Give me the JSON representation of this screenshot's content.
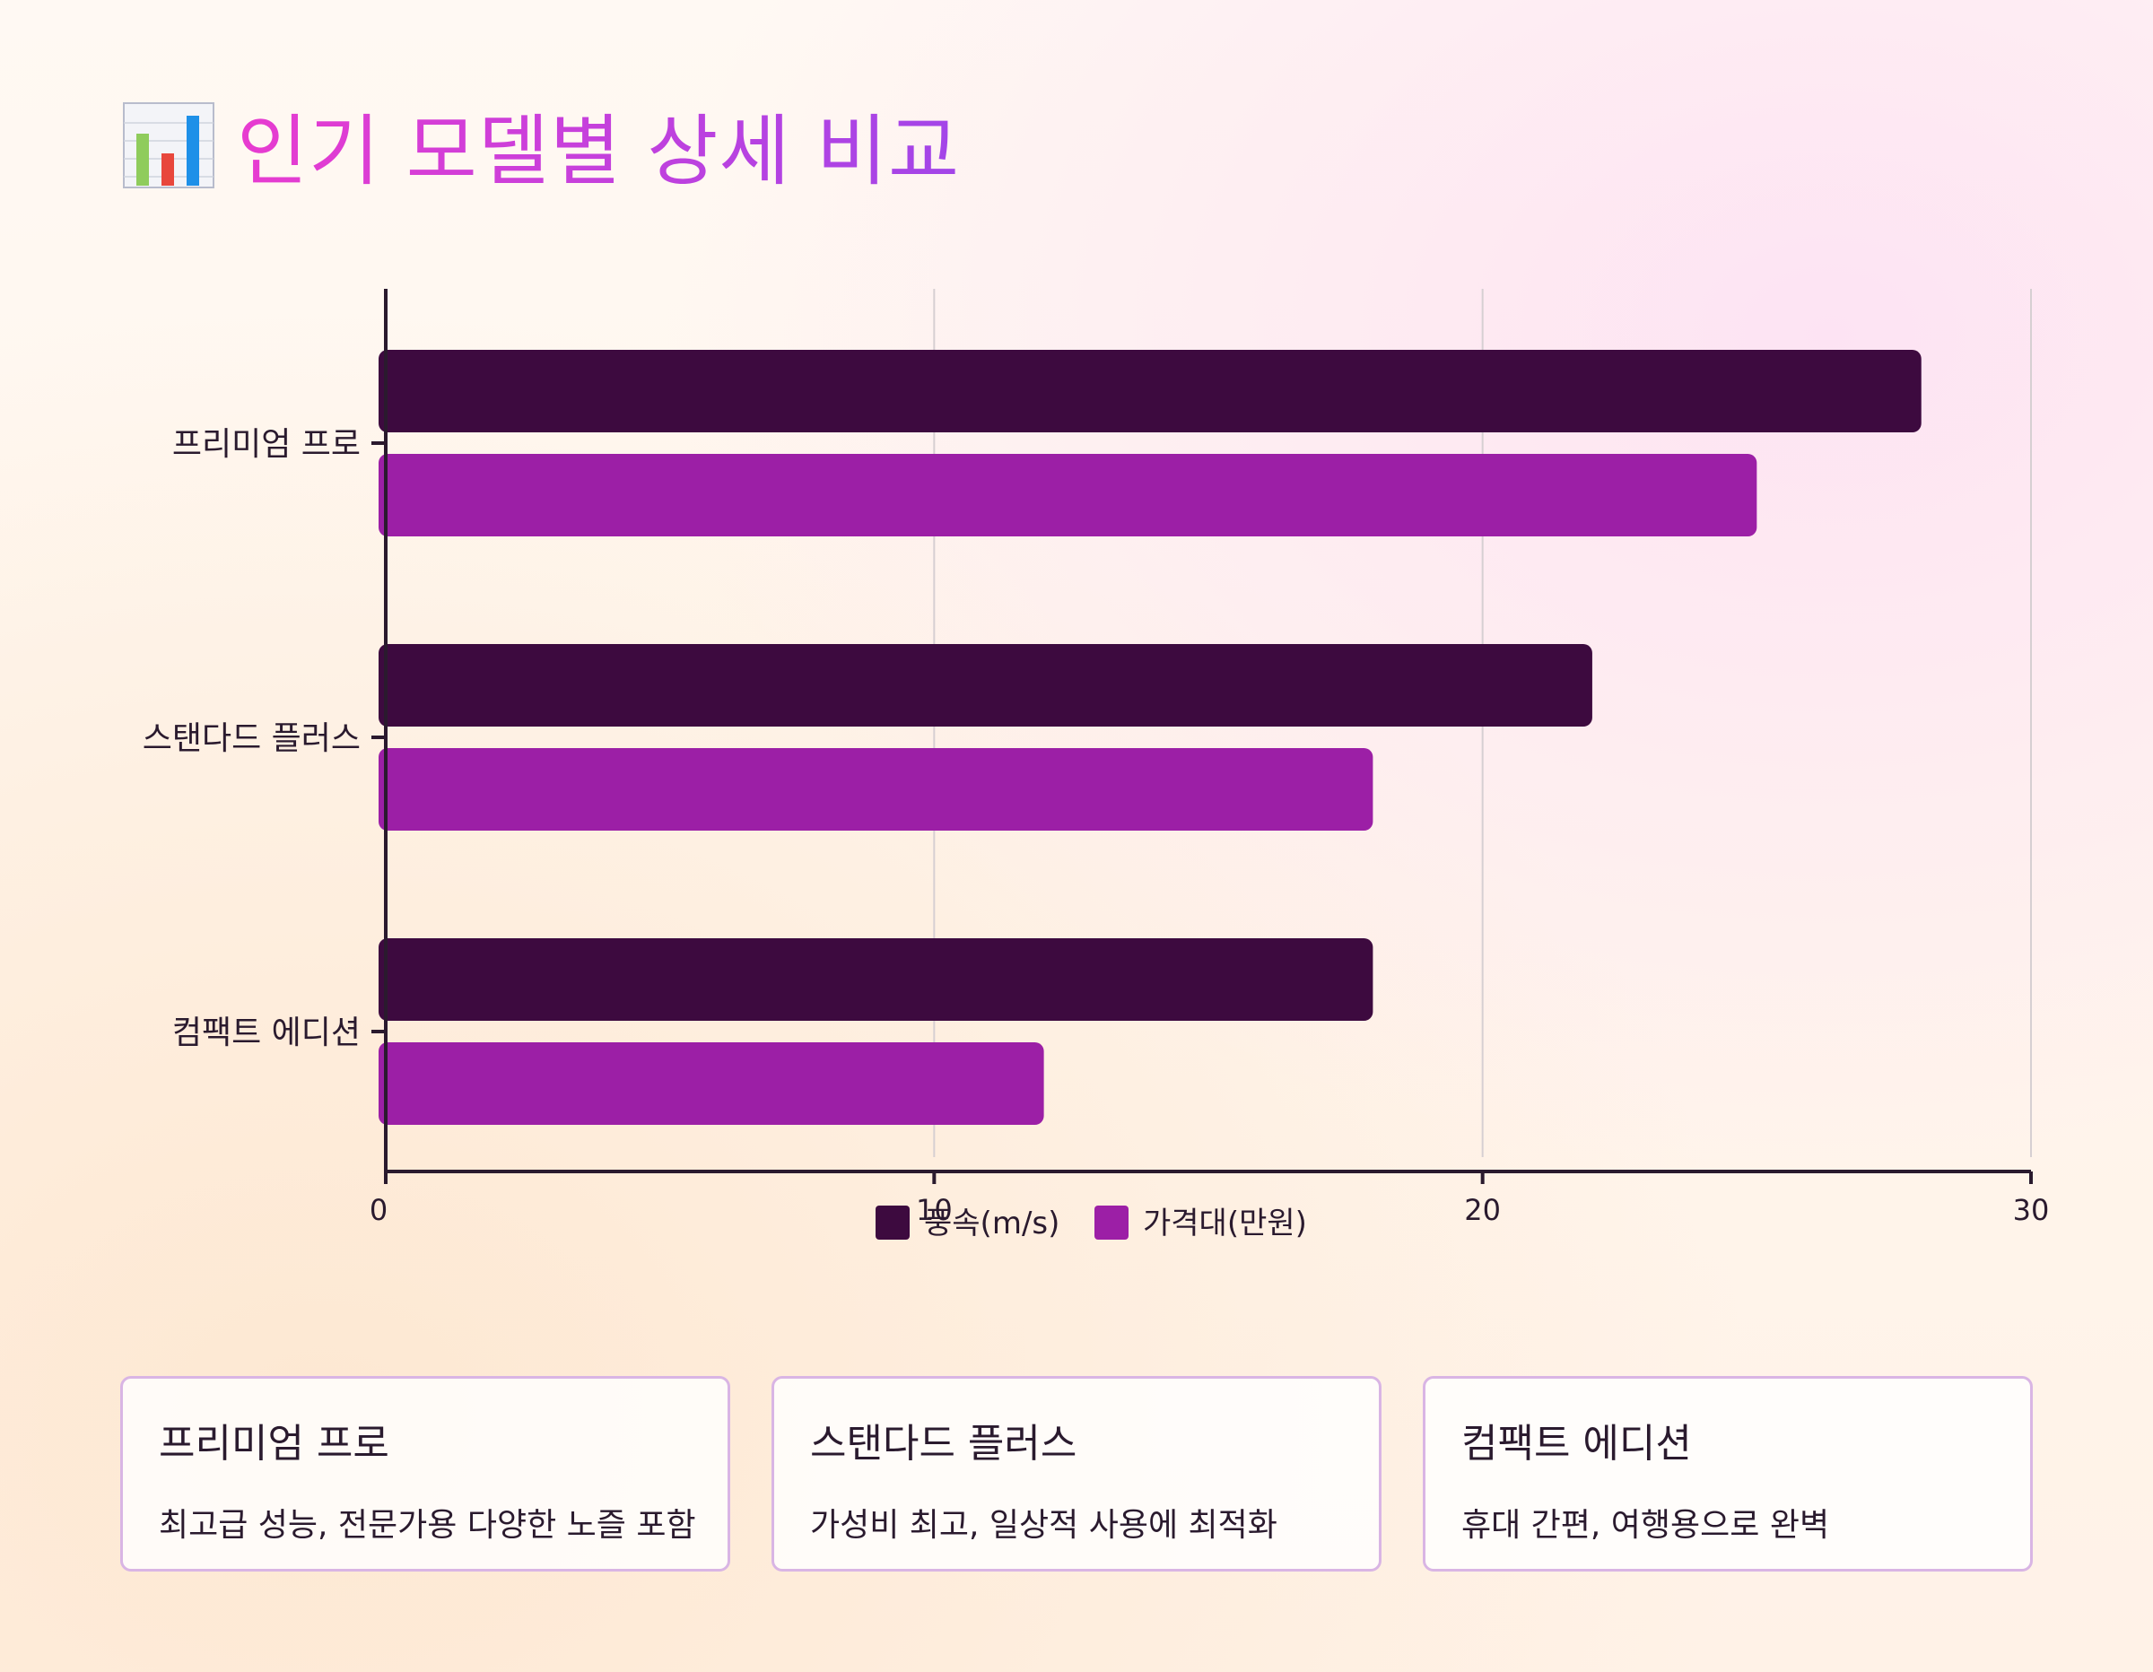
{
  "header": {
    "icon": "bar-chart-icon",
    "title": "인기 모델별 상세 비교"
  },
  "chart_data": {
    "type": "bar",
    "orientation": "horizontal",
    "categories": [
      "프리미엄 프로",
      "스탠다드 플러스",
      "컴팩트 에디션"
    ],
    "series": [
      {
        "name": "풍속(m/s)",
        "values": [
          28,
          22,
          18
        ],
        "color": "#3d0a3f"
      },
      {
        "name": "가격대(만원)",
        "values": [
          25,
          18,
          12
        ],
        "color": "#9c1fa6"
      }
    ],
    "xlim": [
      0,
      30
    ],
    "xticks": [
      "0",
      "10",
      "20",
      "30"
    ],
    "grid": true,
    "legend": "bottom",
    "title": "",
    "xlabel": "",
    "ylabel": ""
  },
  "cards": [
    {
      "title": "프리미엄 프로",
      "desc": "최고급 성능, 전문가용 다양한 노즐 포함"
    },
    {
      "title": "스탠다드 플러스",
      "desc": "가성비 최고, 일상적 사용에 최적화"
    },
    {
      "title": "컴팩트 에디션",
      "desc": "휴대 간편, 여행용으로 완벽"
    }
  ]
}
